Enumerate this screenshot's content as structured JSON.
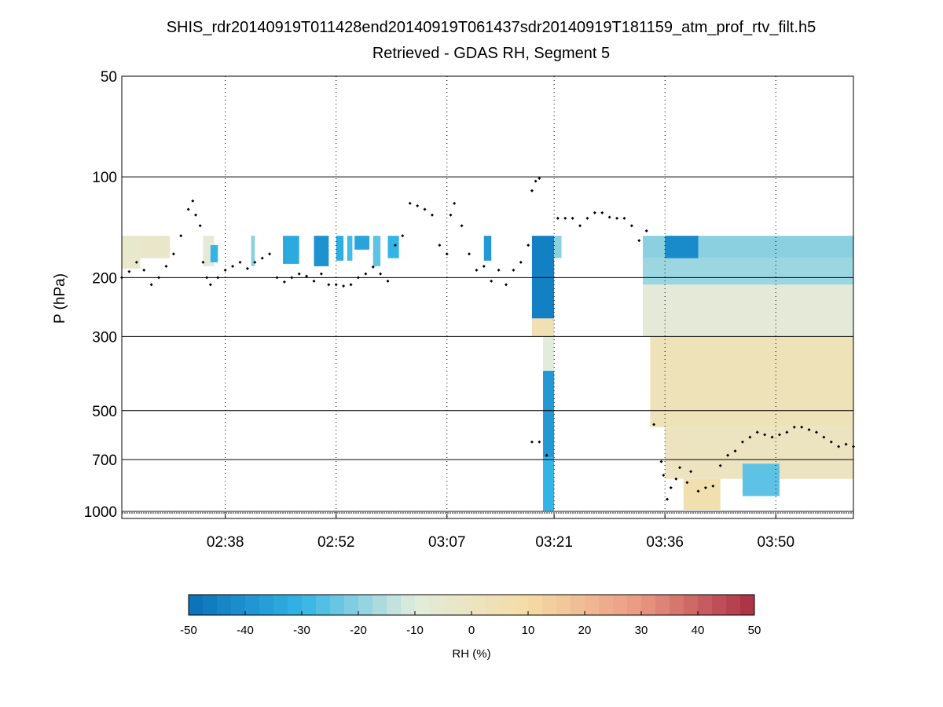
{
  "chart_data": {
    "type": "heatmap",
    "title": "SHIS_rdr20140919T011428end20140919T061437sdr20140919T181159_atm_prof_rtv_filt.h5",
    "subtitle": "Retrieved - GDAS RH, Segment 5",
    "xlabel": "",
    "ylabel": "P (hPa)",
    "x_unit": "minutes after 02:24 UTC",
    "xlim": [
      0,
      99
    ],
    "x_ticks": [
      {
        "t": 14,
        "label": "02:38"
      },
      {
        "t": 29,
        "label": "02:52"
      },
      {
        "t": 44,
        "label": "03:07"
      },
      {
        "t": 58.5,
        "label": "03:21"
      },
      {
        "t": 73.5,
        "label": "03:36"
      },
      {
        "t": 88.5,
        "label": "03:50"
      }
    ],
    "y_scale": "log-reversed",
    "ylim": [
      50,
      1050
    ],
    "y_ticks": [
      50,
      100,
      200,
      300,
      500,
      700,
      1000
    ],
    "grid": {
      "x": "dotted",
      "y": "solid"
    },
    "colorbar": {
      "label": "RH (%)",
      "min": -50,
      "max": 50,
      "levels": 40,
      "ticks": [
        -50,
        -40,
        -30,
        -20,
        -10,
        0,
        10,
        20,
        30,
        40,
        50
      ],
      "colors": [
        "#0a6fb8",
        "#32b4e6",
        "#e2ecdc",
        "#f5dca5",
        "#ea9882",
        "#aa2d43"
      ]
    },
    "rh_blocks": [
      {
        "t0": 0,
        "t1": 2.5,
        "p0": 150,
        "p1": 188,
        "v": -5
      },
      {
        "t0": 2.5,
        "t1": 6.5,
        "p0": 150,
        "p1": 175,
        "v": -3
      },
      {
        "t0": 11,
        "t1": 12.5,
        "p0": 150,
        "p1": 185,
        "v": -8
      },
      {
        "t0": 12,
        "t1": 13,
        "p0": 160,
        "p1": 180,
        "v": -30
      },
      {
        "t0": 17.5,
        "t1": 18,
        "p0": 150,
        "p1": 185,
        "v": -20
      },
      {
        "t0": 21.8,
        "t1": 24,
        "p0": 150,
        "p1": 182,
        "v": -33
      },
      {
        "t0": 26,
        "t1": 28,
        "p0": 150,
        "p1": 185,
        "v": -40
      },
      {
        "t0": 29,
        "t1": 30,
        "p0": 150,
        "p1": 178,
        "v": -32
      },
      {
        "t0": 30.5,
        "t1": 31.2,
        "p0": 150,
        "p1": 178,
        "v": -28
      },
      {
        "t0": 31.5,
        "t1": 33.5,
        "p0": 150,
        "p1": 165,
        "v": -35
      },
      {
        "t0": 34,
        "t1": 35,
        "p0": 150,
        "p1": 185,
        "v": -25
      },
      {
        "t0": 36,
        "t1": 37.5,
        "p0": 150,
        "p1": 175,
        "v": -30
      },
      {
        "t0": 49,
        "t1": 50,
        "p0": 150,
        "p1": 178,
        "v": -38
      },
      {
        "t0": 55.5,
        "t1": 58.5,
        "p0": 150,
        "p1": 265,
        "v": -45
      },
      {
        "t0": 55.5,
        "t1": 58.5,
        "p0": 265,
        "p1": 300,
        "v": 5
      },
      {
        "t0": 57,
        "t1": 58.5,
        "p0": 300,
        "p1": 380,
        "v": -10
      },
      {
        "t0": 57,
        "t1": 58.5,
        "p0": 380,
        "p1": 690,
        "v": -38
      },
      {
        "t0": 57,
        "t1": 58.5,
        "p0": 690,
        "p1": 1000,
        "v": -30
      },
      {
        "t0": 58.5,
        "t1": 59.5,
        "p0": 150,
        "p1": 175,
        "v": -20
      },
      {
        "t0": 70.5,
        "t1": 99,
        "p0": 150,
        "p1": 175,
        "v": -20
      },
      {
        "t0": 73.5,
        "t1": 78,
        "p0": 150,
        "p1": 180,
        "v": -42
      },
      {
        "t0": 70.5,
        "t1": 99,
        "p0": 175,
        "p1": 210,
        "v": -18
      },
      {
        "t0": 70.5,
        "t1": 99,
        "p0": 210,
        "p1": 300,
        "v": -8
      },
      {
        "t0": 71.5,
        "t1": 99,
        "p0": 300,
        "p1": 560,
        "v": 3
      },
      {
        "t0": 73.5,
        "t1": 99,
        "p0": 560,
        "p1": 800,
        "v": 0
      },
      {
        "t0": 84,
        "t1": 89,
        "p0": 720,
        "p1": 900,
        "v": -25
      },
      {
        "t0": 76,
        "t1": 81,
        "p0": 800,
        "p1": 990,
        "v": 6
      }
    ],
    "profile_points": [
      [
        0,
        200
      ],
      [
        1,
        192
      ],
      [
        2,
        180
      ],
      [
        3,
        190
      ],
      [
        4,
        210
      ],
      [
        5,
        200
      ],
      [
        6,
        185
      ],
      [
        7,
        170
      ],
      [
        8,
        150
      ],
      [
        9,
        125
      ],
      [
        9.6,
        118
      ],
      [
        10,
        130
      ],
      [
        10.6,
        140
      ],
      [
        11,
        180
      ],
      [
        11.5,
        200
      ],
      [
        12,
        210
      ],
      [
        13,
        200
      ],
      [
        14,
        190
      ],
      [
        15,
        185
      ],
      [
        16,
        180
      ],
      [
        17,
        188
      ],
      [
        18,
        180
      ],
      [
        19,
        175
      ],
      [
        20,
        170
      ],
      [
        21,
        200
      ],
      [
        22,
        206
      ],
      [
        23,
        200
      ],
      [
        24,
        195
      ],
      [
        25,
        198
      ],
      [
        26,
        205
      ],
      [
        27,
        195
      ],
      [
        28,
        210
      ],
      [
        29,
        210
      ],
      [
        30,
        212
      ],
      [
        31,
        210
      ],
      [
        32,
        200
      ],
      [
        33,
        195
      ],
      [
        34,
        186
      ],
      [
        35,
        195
      ],
      [
        36,
        205
      ],
      [
        37,
        160
      ],
      [
        38,
        150
      ],
      [
        39,
        120
      ],
      [
        40,
        122
      ],
      [
        41,
        125
      ],
      [
        42,
        130
      ],
      [
        43,
        160
      ],
      [
        44,
        170
      ],
      [
        44.5,
        130
      ],
      [
        45,
        120
      ],
      [
        46,
        140
      ],
      [
        47,
        170
      ],
      [
        48,
        190
      ],
      [
        49,
        185
      ],
      [
        50,
        205
      ],
      [
        51,
        190
      ],
      [
        52,
        210
      ],
      [
        53,
        190
      ],
      [
        54,
        180
      ],
      [
        55,
        160
      ],
      [
        55.5,
        110
      ],
      [
        56,
        103
      ],
      [
        56.5,
        101
      ],
      [
        55.5,
        620
      ],
      [
        56.5,
        620
      ],
      [
        57.5,
        680
      ],
      [
        59,
        133
      ],
      [
        60,
        133
      ],
      [
        61,
        133
      ],
      [
        62,
        140
      ],
      [
        63,
        133
      ],
      [
        64,
        128
      ],
      [
        65,
        128
      ],
      [
        66,
        132
      ],
      [
        67,
        133
      ],
      [
        68,
        133
      ],
      [
        69,
        140
      ],
      [
        70,
        155
      ],
      [
        71,
        145
      ],
      [
        72,
        550
      ],
      [
        73,
        710
      ],
      [
        73.3,
        780
      ],
      [
        73.8,
        920
      ],
      [
        74.3,
        850
      ],
      [
        75,
        800
      ],
      [
        75.5,
        740
      ],
      [
        76.5,
        820
      ],
      [
        77,
        760
      ],
      [
        78,
        870
      ],
      [
        79,
        850
      ],
      [
        80,
        840
      ],
      [
        81,
        730
      ],
      [
        82,
        680
      ],
      [
        83,
        660
      ],
      [
        84,
        620
      ],
      [
        85,
        600
      ],
      [
        86,
        580
      ],
      [
        87,
        590
      ],
      [
        88,
        600
      ],
      [
        89,
        590
      ],
      [
        90,
        580
      ],
      [
        91,
        560
      ],
      [
        92,
        560
      ],
      [
        93,
        570
      ],
      [
        94,
        580
      ],
      [
        95,
        600
      ],
      [
        96,
        620
      ],
      [
        97,
        640
      ],
      [
        98,
        630
      ],
      [
        99,
        640
      ]
    ]
  }
}
